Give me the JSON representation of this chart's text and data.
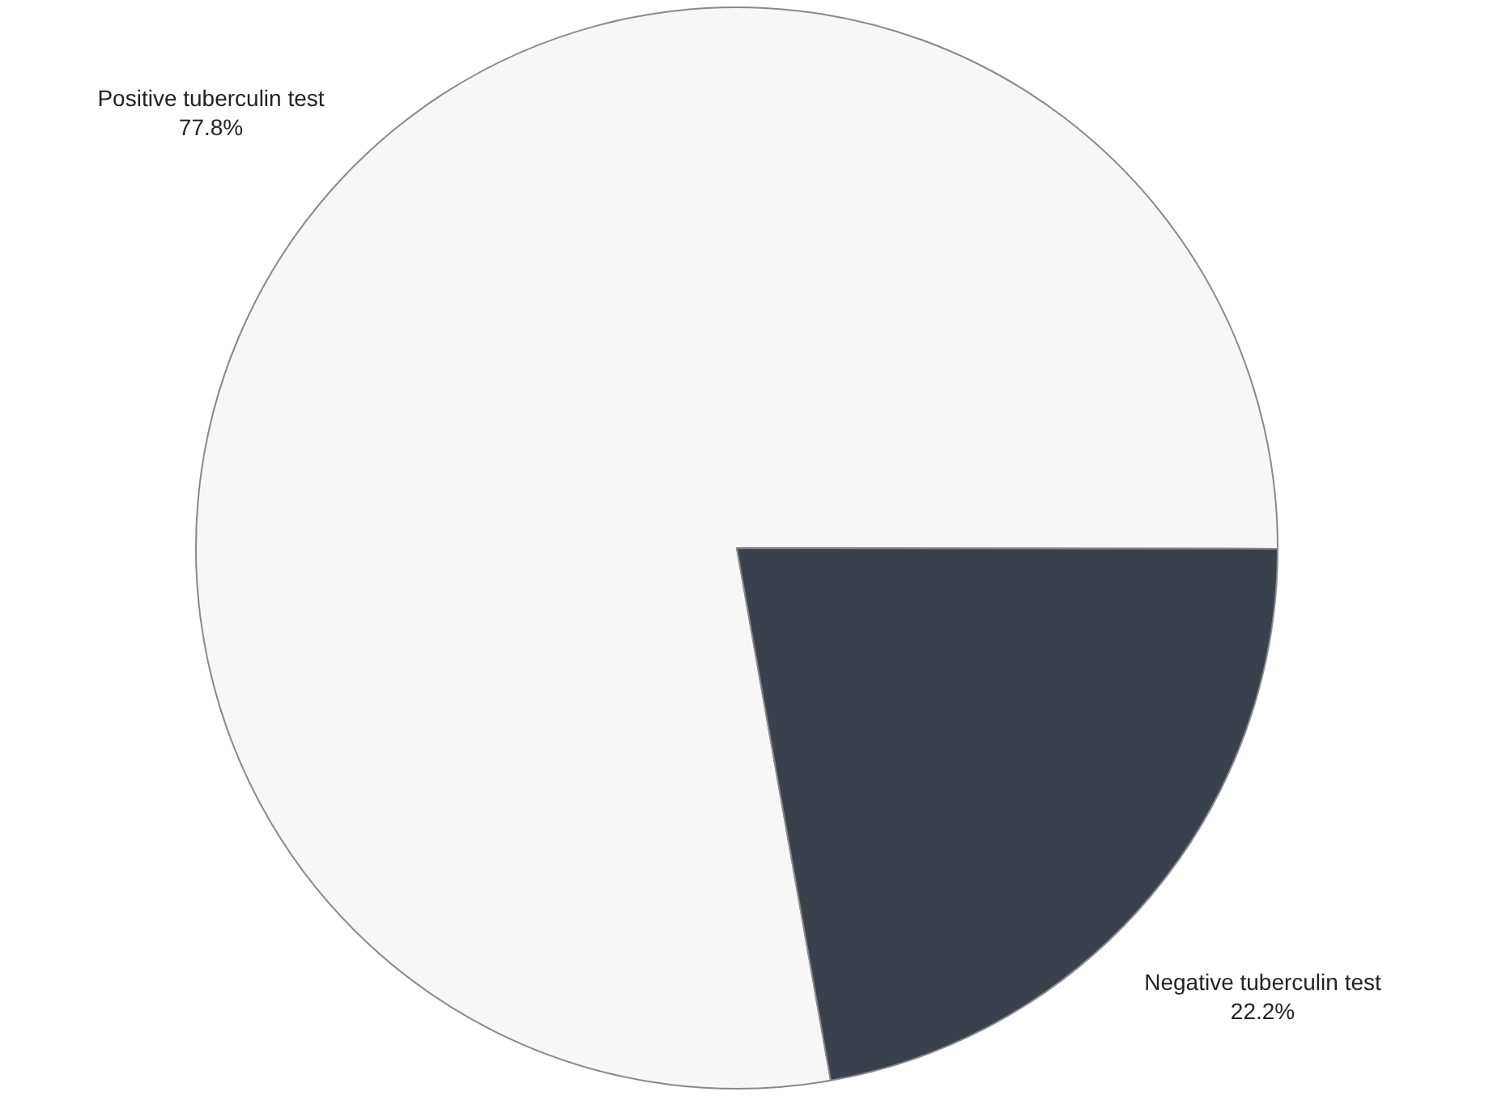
{
  "chart_data": {
    "type": "pie",
    "categories": [
      "Positive tuberculin test",
      "Negative tuberculin test"
    ],
    "values": [
      77.8,
      22.2
    ],
    "colors": [
      "#f7f7f7",
      "#3b404d"
    ],
    "value_labels": [
      "77.8%",
      "22.2%"
    ],
    "legend": false
  }
}
